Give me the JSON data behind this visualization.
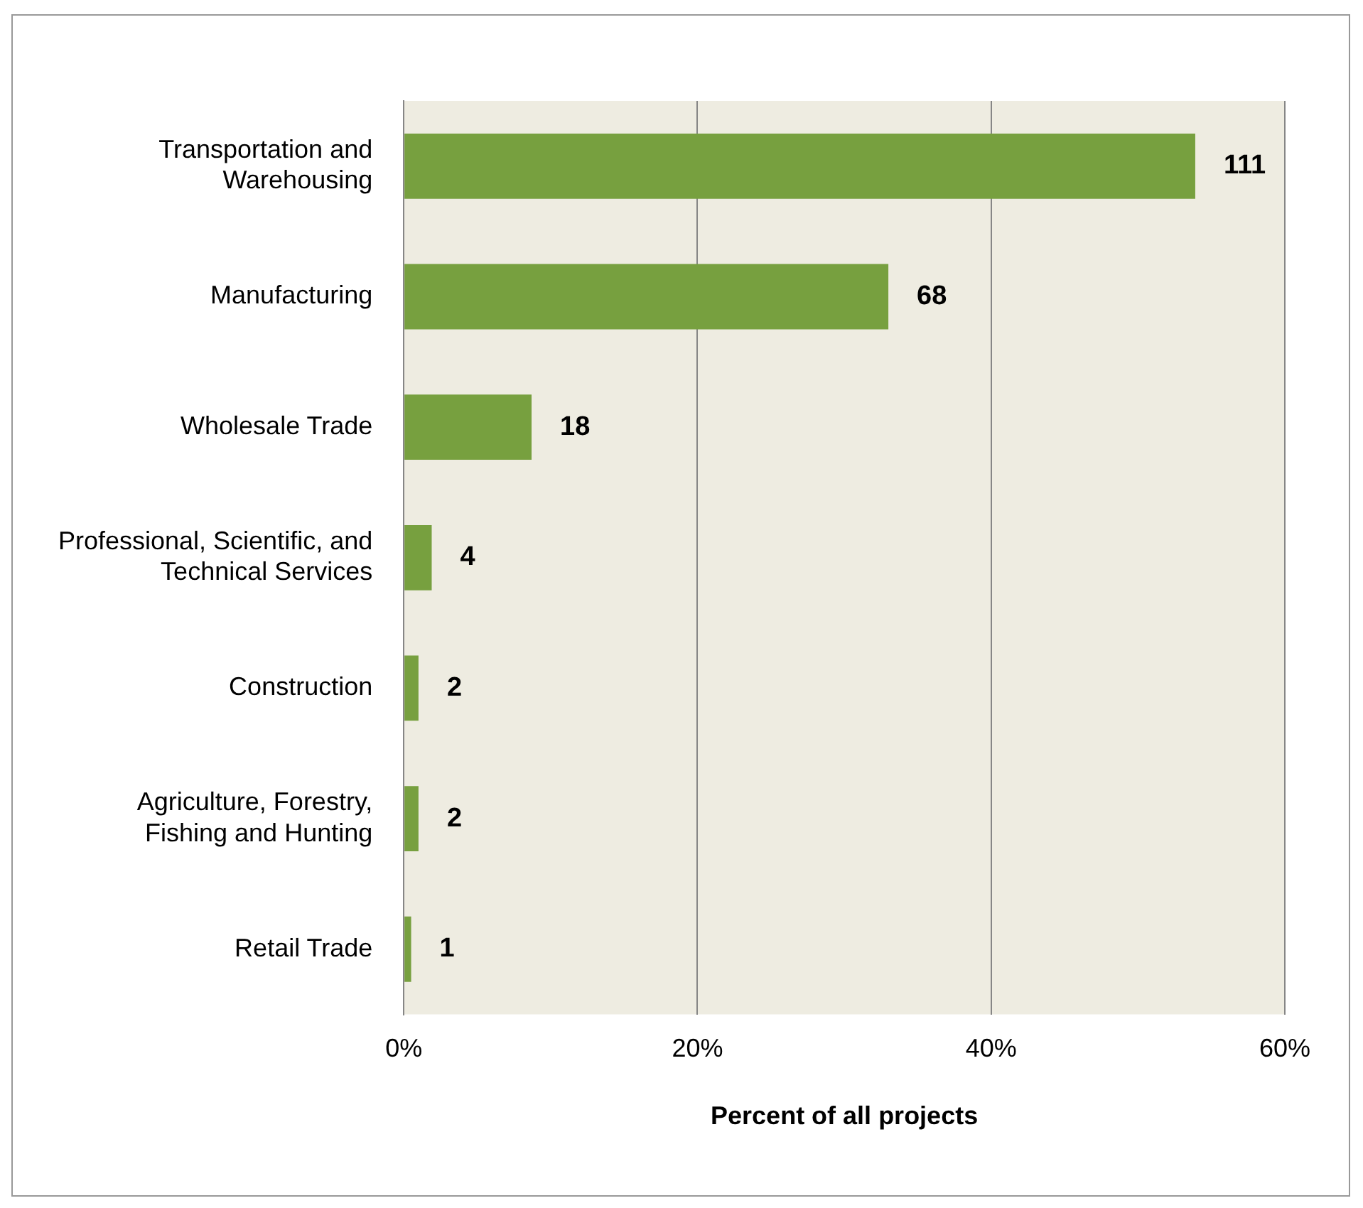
{
  "chart_data": {
    "type": "bar",
    "orientation": "horizontal",
    "xlabel": "Percent of all projects",
    "categories": [
      "Transportation and Warehousing",
      "Manufacturing",
      "Wholesale Trade",
      "Professional, Scientific, and Technical Services",
      "Construction",
      "Agriculture, Forestry, Fishing and Hunting",
      "Retail Trade"
    ],
    "values": [
      53.9,
      33.0,
      8.7,
      1.9,
      1.0,
      1.0,
      0.5
    ],
    "annotations": [
      {
        "text": "111",
        "x": 53.9,
        "y": "Transportation and Warehousing"
      },
      {
        "text": "68",
        "x": 33.0,
        "y": "Manufacturing"
      },
      {
        "text": "18",
        "x": 8.7,
        "y": "Wholesale Trade"
      },
      {
        "text": "4",
        "x": 1.9,
        "y": "Professional, Scientific, and Technical Services"
      },
      {
        "text": "2",
        "x": 1.0,
        "y": "Construction"
      },
      {
        "text": "2",
        "x": 1.0,
        "y": "Agriculture, Forestry, Fishing and Hunting"
      },
      {
        "text": "1",
        "x": 0.5,
        "y": "Retail Trade"
      }
    ],
    "color": "#77a03f",
    "xlim": [
      0,
      60
    ],
    "xticks": [
      {
        "value": 0,
        "label": "0%"
      },
      {
        "value": 20,
        "label": "20%"
      },
      {
        "value": 40,
        "label": "40%"
      },
      {
        "value": 60,
        "label": "60%"
      }
    ],
    "grid": "x",
    "legend": false
  }
}
